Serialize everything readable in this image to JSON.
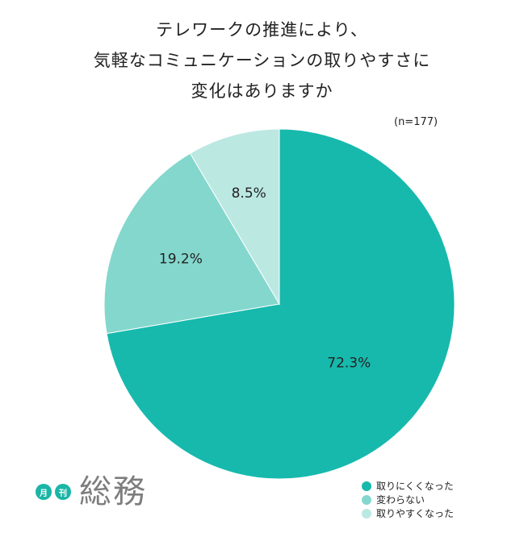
{
  "chart_data": {
    "type": "pie",
    "title_lines": [
      "テレワークの推進により、",
      "気軽なコミュニケーションの取りやすさに",
      "変化はありますか"
    ],
    "sample_note": "(n=177)",
    "slices": [
      {
        "label": "取りにくくなった",
        "value": 72.3,
        "display": "72.3%",
        "color": "#17b9ad"
      },
      {
        "label": "変わらない",
        "value": 19.2,
        "display": "19.2%",
        "color": "#84d7cd"
      },
      {
        "label": "取りやすくなった",
        "value": 8.5,
        "display": "8.5%",
        "color": "#bce8e2"
      }
    ],
    "legend_position": "bottom-right"
  },
  "logo": {
    "badge_1": "月",
    "badge_2": "刊",
    "text": "総務"
  }
}
